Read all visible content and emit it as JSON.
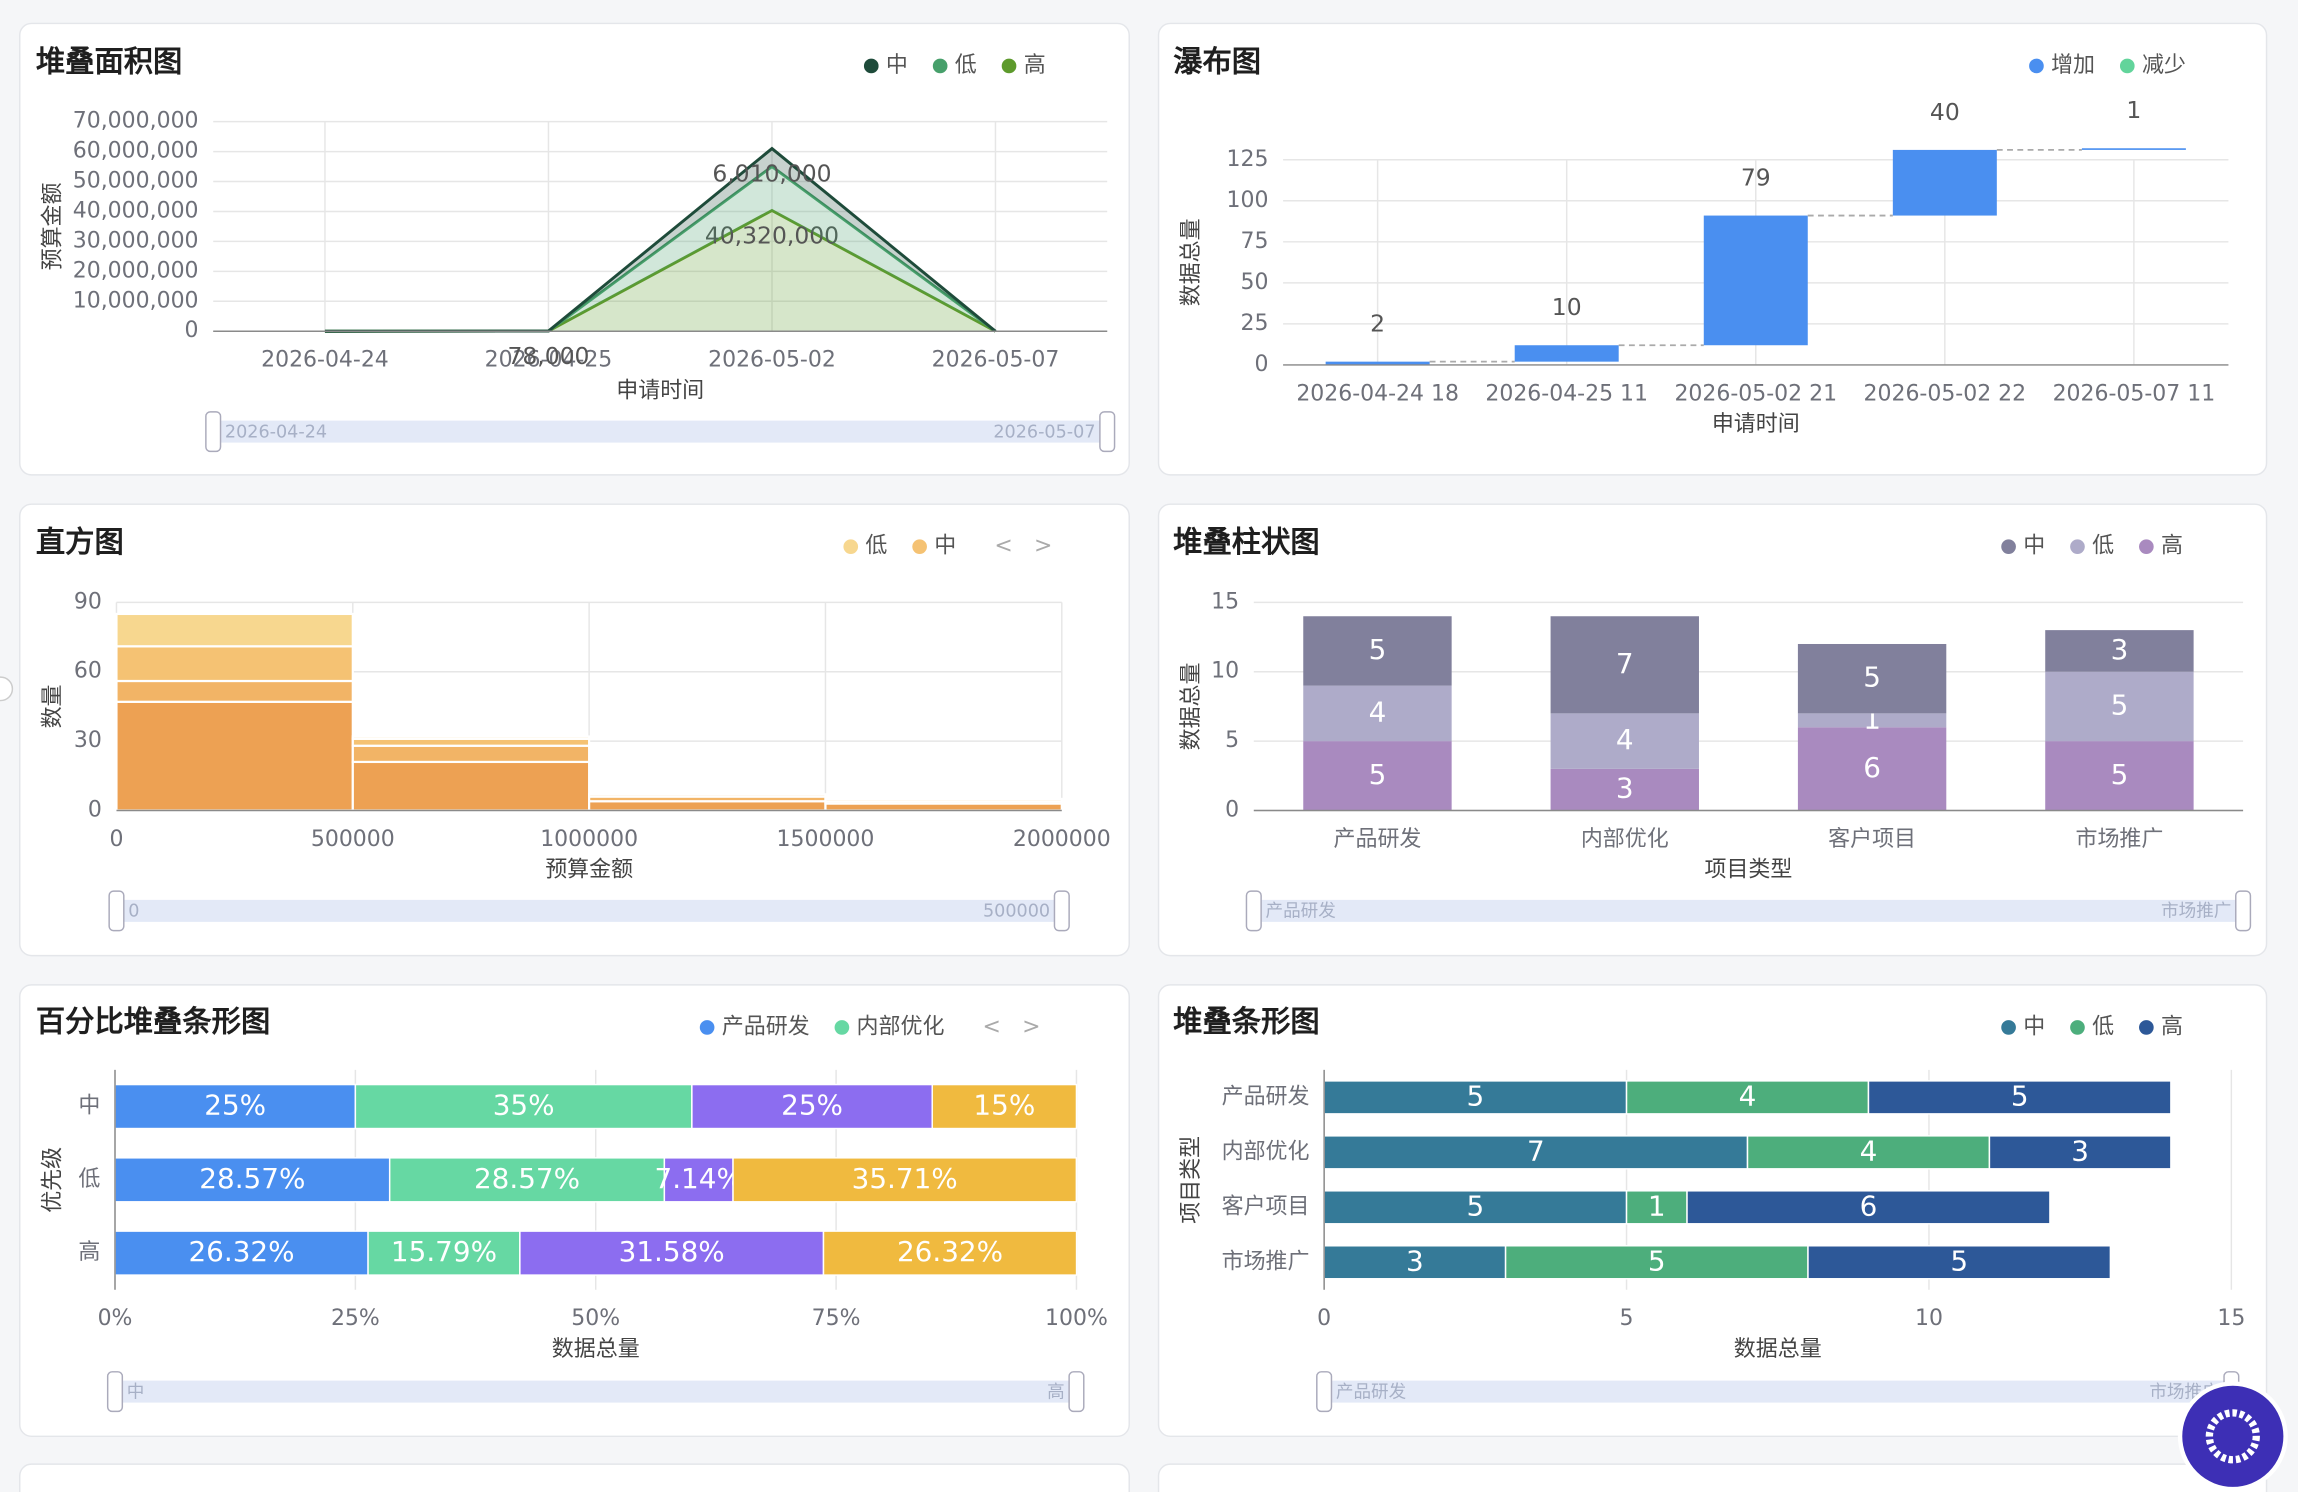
{
  "chart_data": [
    {
      "type": "area",
      "title": "堆叠面积图",
      "x_label": "申请时间",
      "y_label": "预算金额",
      "categories": [
        "2026-04-24",
        "2026-04-25",
        "2026-05-02",
        "2026-05-07"
      ],
      "series": [
        {
          "name": "中",
          "color": "#1e4b3a",
          "values": [
            0,
            0,
            6010000,
            0
          ],
          "value_labels": [
            null,
            null,
            "6,010,000",
            null
          ]
        },
        {
          "name": "低",
          "color": "#47a06b",
          "values": [
            0,
            0,
            14680000,
            0
          ]
        },
        {
          "name": "高",
          "color": "#5d9a2c",
          "values": [
            0,
            78000,
            40320000,
            0
          ],
          "value_labels": [
            null,
            "78,000",
            "40,320,000",
            null
          ]
        }
      ],
      "ylim": [
        0,
        70000000
      ],
      "yticks": [
        0,
        {
          "value": 10000000,
          "label": "10,000,000"
        },
        {
          "value": 20000000,
          "label": "20,000,000"
        },
        {
          "value": 30000000,
          "label": "30,000,000"
        },
        {
          "value": 40000000,
          "label": "40,000,000"
        },
        {
          "value": 50000000,
          "label": "50,000,000"
        },
        {
          "value": 60000000,
          "label": "60,000,000"
        },
        {
          "value": 70000000,
          "label": "70,000,000"
        }
      ],
      "zoom": [
        "2026-04-24",
        "2026-05-07"
      ]
    },
    {
      "type": "waterfall",
      "title": "瀑布图",
      "x_label": "申请时间",
      "y_label": "数据总量",
      "legend": [
        {
          "name": "增加",
          "color": "#4a8ff0"
        },
        {
          "name": "减少",
          "color": "#62d49b"
        }
      ],
      "categories": [
        "2026-04-24 18",
        "2026-04-25 11",
        "2026-05-02 21",
        "2026-05-02 22",
        "2026-05-07 11"
      ],
      "values": [
        2,
        10,
        79,
        40,
        1
      ],
      "ylim": [
        0,
        125
      ],
      "yticks": [
        0,
        25,
        50,
        75,
        100,
        125
      ]
    },
    {
      "type": "histogram",
      "title": "直方图",
      "x_label": "预算金额",
      "y_label": "数量",
      "legend_pager": [
        "<",
        ">"
      ],
      "bins": [
        0,
        500000,
        1000000,
        1500000,
        2000000
      ],
      "series": [
        {
          "name": "低",
          "color": "#f7d78f",
          "values": [
            14,
            1,
            0,
            0
          ]
        },
        {
          "name": "中",
          "color": "#f5c273",
          "values": [
            15,
            3,
            1,
            1
          ]
        },
        {
          "name": null,
          "color": "#f2b466",
          "values": [
            9,
            7,
            2,
            1
          ]
        },
        {
          "name": null,
          "color": "#eda153",
          "values": [
            47,
            21,
            4,
            3
          ]
        }
      ],
      "xlim": [
        0,
        2000000
      ],
      "xticks": [
        0,
        500000,
        1000000,
        1500000,
        2000000
      ],
      "ylim": [
        0,
        90
      ],
      "yticks": [
        0,
        30,
        60,
        90
      ],
      "zoom": [
        "0",
        "500000"
      ]
    },
    {
      "type": "stacked_bar",
      "title": "堆叠柱状图",
      "x_label": "项目类型",
      "y_label": "数据总量",
      "categories": [
        "产品研发",
        "内部优化",
        "客户项目",
        "市场推广"
      ],
      "series": [
        {
          "name": "中",
          "color": "#81809c",
          "values": [
            5,
            7,
            5,
            3
          ]
        },
        {
          "name": "低",
          "color": "#aeabc9",
          "values": [
            4,
            4,
            1,
            5
          ]
        },
        {
          "name": "高",
          "color": "#a98abf",
          "values": [
            5,
            3,
            6,
            5
          ]
        }
      ],
      "ylim": [
        0,
        15
      ],
      "yticks": [
        0,
        5,
        10,
        15
      ],
      "zoom": [
        "产品研发",
        "市场推广"
      ]
    },
    {
      "type": "percent_hbar",
      "title": "百分比堆叠条形图",
      "x_label": "数据总量",
      "y_label": "优先级",
      "legend_pager": [
        "<",
        ">"
      ],
      "categories": [
        "中",
        "低",
        "高"
      ],
      "series": [
        {
          "name": "产品研发",
          "color": "#4a8ff0",
          "values": [
            25,
            28.57,
            26.32
          ],
          "value_labels": [
            "25%",
            "28.57%",
            "26.32%"
          ]
        },
        {
          "name": "内部优化",
          "color": "#66d8a3",
          "values": [
            35,
            28.57,
            15.79
          ],
          "value_labels": [
            "35%",
            "28.57%",
            "15.79%"
          ]
        },
        {
          "name": null,
          "color": "#8c6df0",
          "values": [
            25,
            7.14,
            31.58
          ],
          "value_labels": [
            "25%",
            "7.14%",
            "31.58%"
          ]
        },
        {
          "name": null,
          "color": "#f0ba3f",
          "values": [
            15,
            35.71,
            26.32
          ],
          "value_labels": [
            "15%",
            "35.71%",
            "26.32%"
          ]
        }
      ],
      "xlim": [
        0,
        100
      ],
      "xticks": [
        {
          "value": 0,
          "label": "0%"
        },
        {
          "value": 25,
          "label": "25%"
        },
        {
          "value": 50,
          "label": "50%"
        },
        {
          "value": 75,
          "label": "75%"
        },
        {
          "value": 100,
          "label": "100%"
        }
      ],
      "zoom": [
        "中",
        "高"
      ]
    },
    {
      "type": "hbar",
      "title": "堆叠条形图",
      "x_label": "数据总量",
      "y_label": "项目类型",
      "categories": [
        "产品研发",
        "内部优化",
        "客户项目",
        "市场推广"
      ],
      "series": [
        {
          "name": "中",
          "color": "#357a98",
          "values": [
            5,
            7,
            5,
            3
          ]
        },
        {
          "name": "低",
          "color": "#4dae7c",
          "values": [
            4,
            4,
            1,
            5
          ]
        },
        {
          "name": "高",
          "color": "#2d5898",
          "values": [
            5,
            3,
            6,
            5
          ]
        }
      ],
      "xlim": [
        0,
        15
      ],
      "xticks": [
        0,
        5,
        10,
        15
      ],
      "zoom": [
        "产品研发",
        "市场推广"
      ]
    }
  ]
}
